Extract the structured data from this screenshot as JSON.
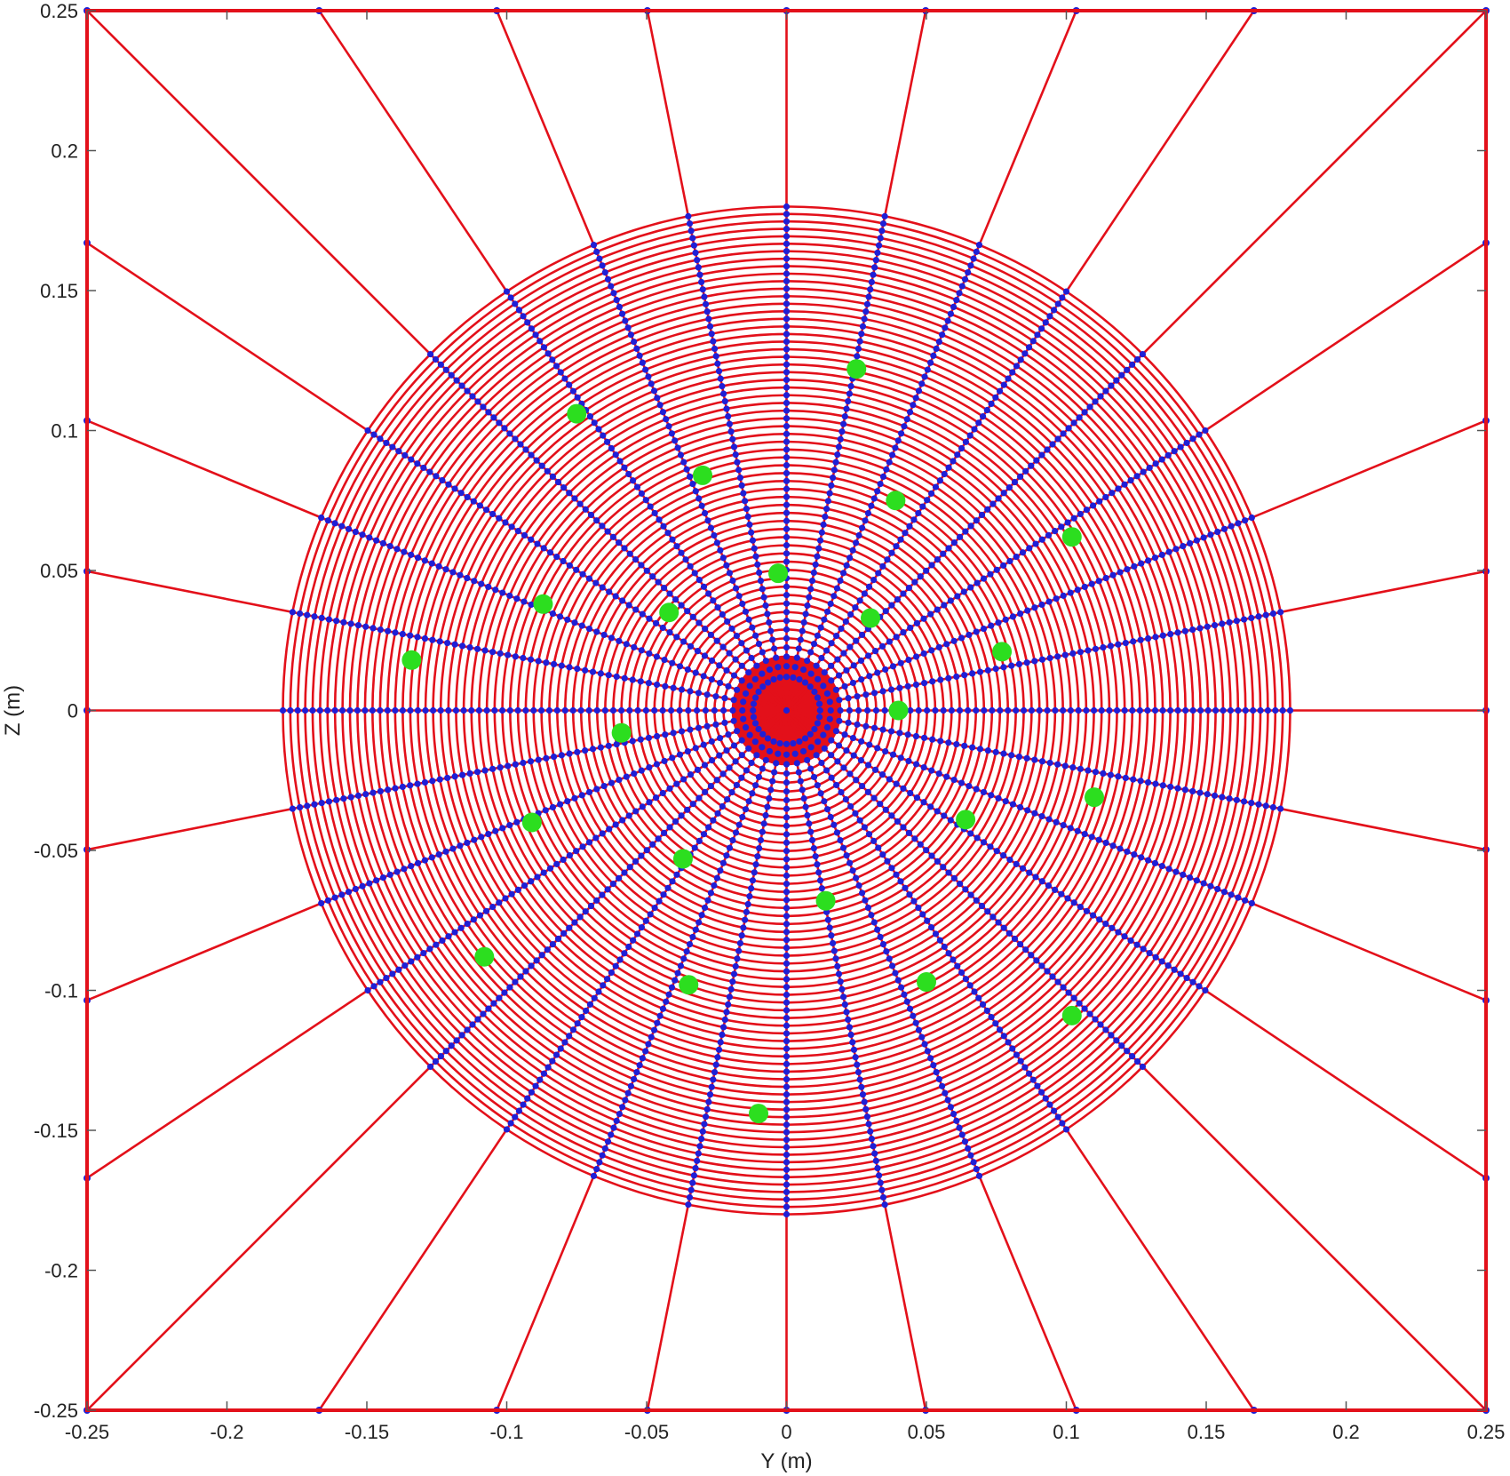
{
  "chart_data": {
    "type": "scatter",
    "title": "",
    "xlabel": "Y (m)",
    "ylabel": "Z (m)",
    "xlim": [
      -0.25,
      0.25
    ],
    "ylim": [
      -0.25,
      0.25
    ],
    "xticks": [
      "-0.25",
      "-0.2",
      "-0.15",
      "-0.1",
      "-0.05",
      "0",
      "0.05",
      "0.1",
      "0.15",
      "0.2",
      "0.25"
    ],
    "yticks": [
      "0.25",
      "0.2",
      "0.15",
      "0.1",
      "0.05",
      "0",
      "-0.05",
      "-0.1",
      "-0.15",
      "-0.2",
      "-0.25"
    ],
    "grid": false,
    "mesh": {
      "inner_disk_radius": 0.01,
      "outer_radius": 0.18,
      "ring_count": 60,
      "spoke_count": 32,
      "line_color": "#e3101a",
      "node_color": "#1f1fd6"
    },
    "green_points": {
      "color": "#2cde1f",
      "points": [
        [
          0.025,
          0.122
        ],
        [
          -0.075,
          0.106
        ],
        [
          -0.03,
          0.084
        ],
        [
          0.039,
          0.075
        ],
        [
          0.102,
          0.062
        ],
        [
          -0.003,
          0.049
        ],
        [
          -0.087,
          0.038
        ],
        [
          -0.042,
          0.035
        ],
        [
          0.03,
          0.033
        ],
        [
          0.077,
          0.021
        ],
        [
          -0.134,
          0.018
        ],
        [
          0.04,
          0.0
        ],
        [
          -0.059,
          -0.008
        ],
        [
          0.11,
          -0.031
        ],
        [
          -0.091,
          -0.04
        ],
        [
          0.064,
          -0.039
        ],
        [
          -0.037,
          -0.053
        ],
        [
          0.014,
          -0.068
        ],
        [
          -0.108,
          -0.088
        ],
        [
          0.05,
          -0.097
        ],
        [
          -0.035,
          -0.098
        ],
        [
          0.102,
          -0.109
        ],
        [
          -0.01,
          -0.144
        ]
      ]
    }
  }
}
